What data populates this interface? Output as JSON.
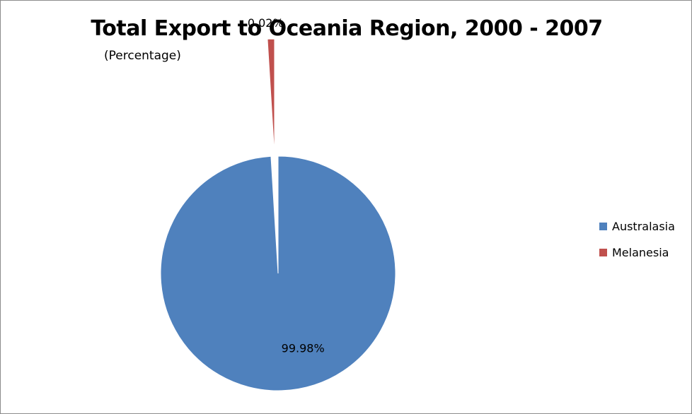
{
  "chart_data": {
    "type": "pie",
    "title": "Total Export to Oceania Region, 2000 - 2007",
    "subtitle": "(Percentage)",
    "categories": [
      "Australasia",
      "Melanesia"
    ],
    "values": [
      99.98,
      0.02
    ],
    "labels": [
      "99.98%",
      "0.02%"
    ],
    "colors": [
      "#4f81bd",
      "#c0504d"
    ],
    "exploded": [
      false,
      true
    ],
    "legend_position": "right"
  }
}
